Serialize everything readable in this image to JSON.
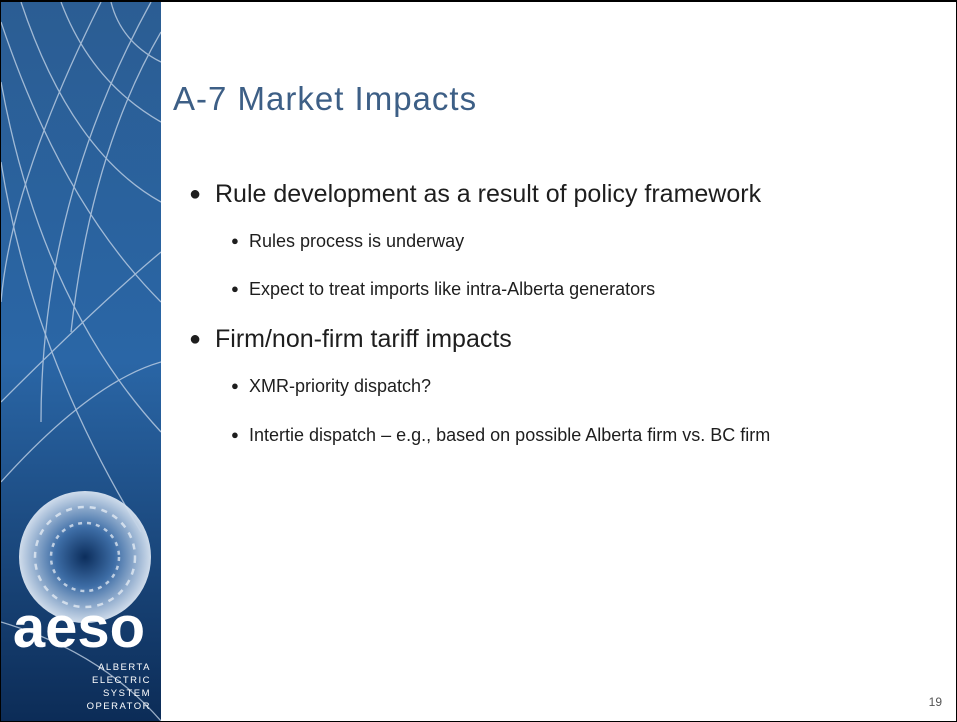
{
  "header": {
    "title": "A-7 Market Impacts"
  },
  "logo": {
    "name": "aeso",
    "lines": [
      "ALBERTA",
      "ELECTRIC",
      "SYSTEM",
      "OPERATOR"
    ]
  },
  "bullets": [
    {
      "level": 1,
      "text": "Rule development as a result of policy framework"
    },
    {
      "level": 2,
      "text": "Rules process is underway"
    },
    {
      "level": 2,
      "text": "Expect to treat imports like intra-Alberta generators"
    },
    {
      "level": 1,
      "text": "Firm/non-firm tariff impacts"
    },
    {
      "level": 2,
      "text": "XMR-priority dispatch?"
    },
    {
      "level": 2,
      "text": "Intertie dispatch – e.g., based on possible Alberta firm vs. BC firm"
    }
  ],
  "page_number": "19"
}
